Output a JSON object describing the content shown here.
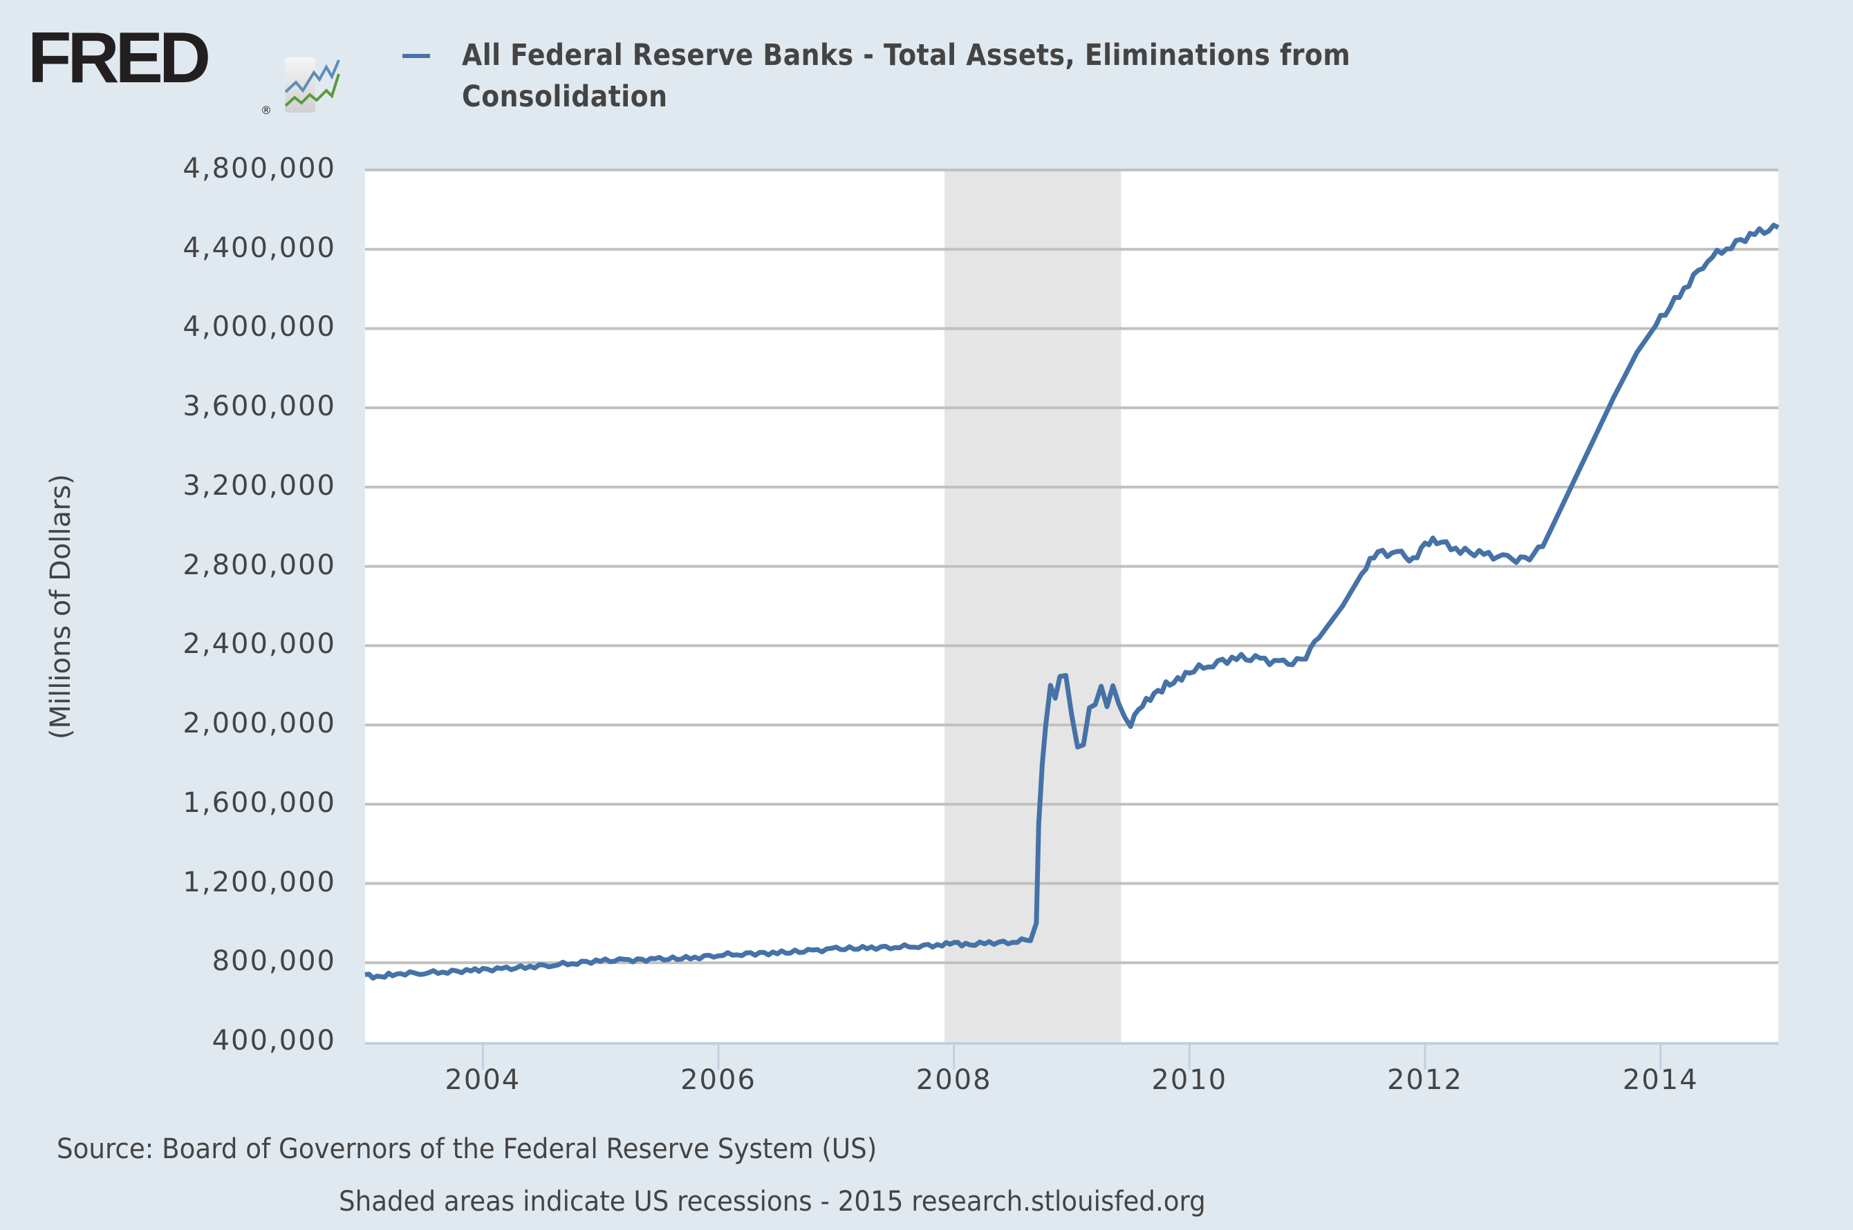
{
  "logo": {
    "text": "FRED",
    "registered": "®"
  },
  "colors": {
    "background": "#e1e9f0",
    "plot_background": "#ffffff",
    "series": "#4572a7",
    "gridline": "#c0c0c0",
    "recession": "#e5e5e5",
    "axis": "#c0d0e0",
    "text": "#444444"
  },
  "legend": {
    "label": "All Federal Reserve Banks - Total Assets, Eliminations from Consolidation"
  },
  "footer": {
    "source": "Source: Board of Governors of the Federal Reserve System (US)",
    "note": "Shaded areas indicate US recessions - 2015 research.stlouisfed.org"
  },
  "chart_data": {
    "type": "line",
    "title": "All Federal Reserve Banks - Total Assets, Eliminations from Consolidation",
    "xlabel": "",
    "ylabel": "(Millions of Dollars)",
    "xlim": [
      2003.0,
      2015.0
    ],
    "ylim": [
      400000,
      4800000
    ],
    "grid": true,
    "legend_position": "top",
    "yticks": [
      400000,
      800000,
      1200000,
      1600000,
      2000000,
      2400000,
      2800000,
      3200000,
      3600000,
      4000000,
      4400000,
      4800000
    ],
    "ytick_labels": [
      "400,000",
      "800,000",
      "1,200,000",
      "1,600,000",
      "2,000,000",
      "2,400,000",
      "2,800,000",
      "3,200,000",
      "3,600,000",
      "4,000,000",
      "4,400,000",
      "4,800,000"
    ],
    "xticks": [
      2004,
      2006,
      2008,
      2010,
      2012,
      2014
    ],
    "xtick_labels": [
      "2004",
      "2006",
      "2008",
      "2010",
      "2012",
      "2014"
    ],
    "recessions": [
      {
        "start": 2007.92,
        "end": 2009.42
      }
    ],
    "series": [
      {
        "name": "All Federal Reserve Banks - Total Assets, Eliminations from Consolidation",
        "x": [
          2003.0,
          2003.1,
          2003.2,
          2003.3,
          2003.5,
          2003.7,
          2003.9,
          2004.0,
          2004.2,
          2004.4,
          2004.6,
          2004.8,
          2005.0,
          2005.2,
          2005.5,
          2005.8,
          2006.0,
          2006.2,
          2006.5,
          2006.8,
          2007.0,
          2007.3,
          2007.5,
          2007.7,
          2007.9,
          2008.0,
          2008.1,
          2008.3,
          2008.5,
          2008.65,
          2008.7,
          2008.72,
          2008.75,
          2008.78,
          2008.82,
          2008.86,
          2008.9,
          2008.95,
          2009.0,
          2009.05,
          2009.1,
          2009.15,
          2009.2,
          2009.25,
          2009.3,
          2009.35,
          2009.4,
          2009.45,
          2009.5,
          2009.6,
          2009.7,
          2009.8,
          2009.9,
          2010.0,
          2010.2,
          2010.4,
          2010.6,
          2010.8,
          2010.95,
          2011.1,
          2011.3,
          2011.5,
          2011.6,
          2011.8,
          2011.9,
          2012.0,
          2012.1,
          2012.3,
          2012.5,
          2012.7,
          2012.85,
          2013.0,
          2013.2,
          2013.4,
          2013.6,
          2013.8,
          2014.0,
          2014.2,
          2014.4,
          2014.6,
          2014.8,
          2015.0
        ],
        "values": [
          740000,
          725000,
          740000,
          745000,
          750000,
          755000,
          760000,
          765000,
          770000,
          780000,
          790000,
          800000,
          810000,
          812000,
          818000,
          825000,
          840000,
          845000,
          850000,
          860000,
          870000,
          875000,
          880000,
          885000,
          890000,
          900000,
          890000,
          900000,
          905000,
          920000,
          1000000,
          1500000,
          1800000,
          2000000,
          2200000,
          2150000,
          2260000,
          2250000,
          2050000,
          1880000,
          1900000,
          2100000,
          2120000,
          2200000,
          2080000,
          2180000,
          2100000,
          2050000,
          2010000,
          2100000,
          2150000,
          2200000,
          2230000,
          2270000,
          2310000,
          2340000,
          2330000,
          2310000,
          2320000,
          2440000,
          2600000,
          2800000,
          2870000,
          2860000,
          2830000,
          2920000,
          2930000,
          2880000,
          2860000,
          2840000,
          2830000,
          2900000,
          3150000,
          3400000,
          3650000,
          3880000,
          4050000,
          4200000,
          4350000,
          4420000,
          4480000,
          4510000
        ]
      }
    ]
  }
}
